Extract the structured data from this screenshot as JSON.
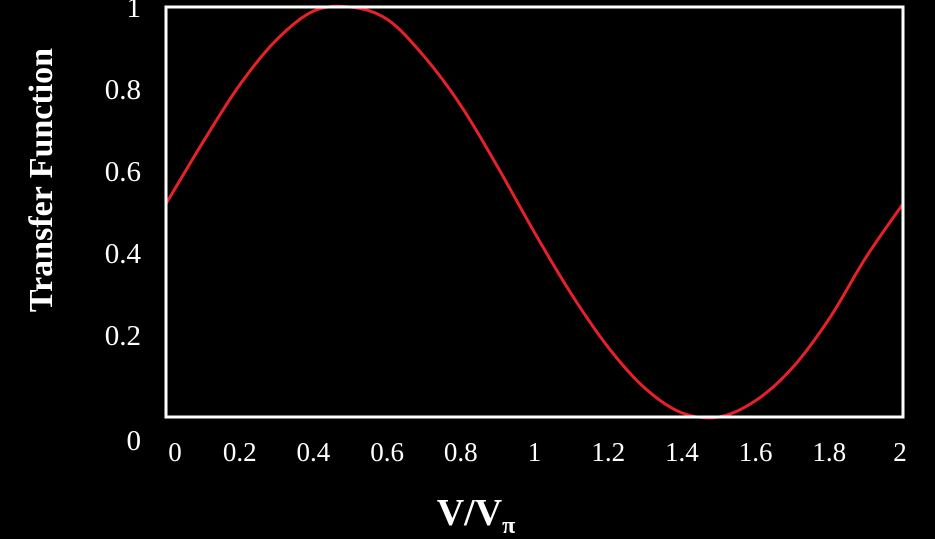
{
  "chart_data": {
    "type": "line",
    "xlabel": "V/V",
    "xlabel_subscript": "π",
    "ylabel": "Transfer Function",
    "xlim": [
      0,
      2
    ],
    "ylim": [
      0,
      1
    ],
    "x_ticks": [
      "0",
      "0.2",
      "0.4",
      "0.6",
      "0.8",
      "1",
      "1.2",
      "1.4",
      "1.6",
      "1.8",
      "2"
    ],
    "y_ticks": [
      "0",
      "0.2",
      "0.4",
      "0.6",
      "0.8",
      "1"
    ],
    "grid": false,
    "background_color": "#000000",
    "frame_color": "#ffffff",
    "series": [
      {
        "color": "#e8202a",
        "x": [
          0,
          0.1,
          0.2,
          0.3,
          0.4,
          0.5,
          0.6,
          0.7,
          0.8,
          0.9,
          1.0,
          1.1,
          1.2,
          1.3,
          1.4,
          1.5,
          1.6,
          1.7,
          1.8,
          1.9,
          2.0
        ],
        "y": [
          0.52,
          0.67,
          0.81,
          0.92,
          0.99,
          1.0,
          0.97,
          0.88,
          0.76,
          0.61,
          0.45,
          0.3,
          0.17,
          0.07,
          0.01,
          0.0,
          0.04,
          0.12,
          0.24,
          0.39,
          0.52
        ]
      }
    ]
  }
}
